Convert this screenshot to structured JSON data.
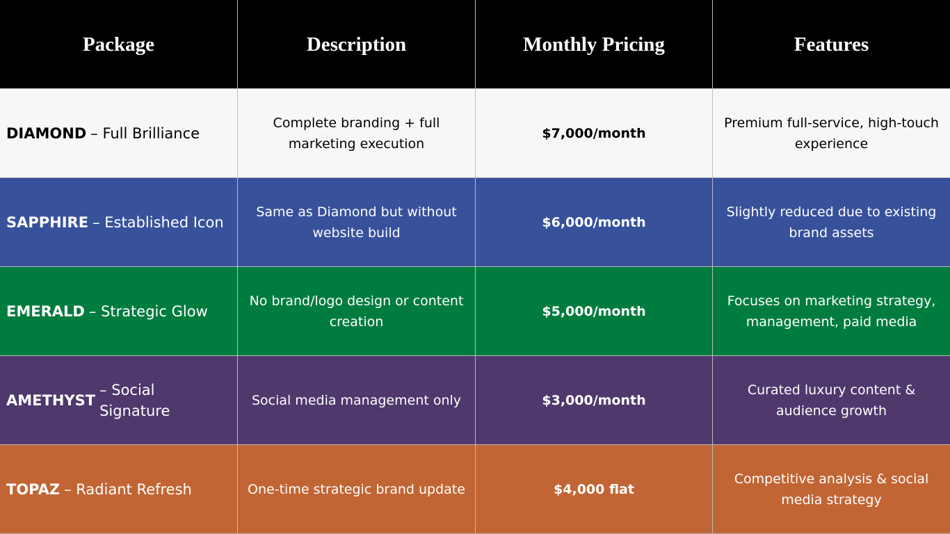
{
  "table": {
    "header": [
      "Package",
      "Description",
      "Monthly Pricing",
      "Features"
    ],
    "rows": [
      {
        "name": "DIAMOND",
        "tagline": "– Full Brilliance",
        "cells": [
          "Complete branding + full marketing execution",
          "$7,000/month",
          "Premium full-service, high-touch experience"
        ],
        "color": "#f8f7f5",
        "text_color": "#000000"
      },
      {
        "name": "SAPPHIRE",
        "tagline": "– Established Icon",
        "cells": [
          "Same as Diamond but without website build",
          "$6,000/month",
          "Slightly reduced due to existing brand assets"
        ],
        "color": "#37519b",
        "text_color": "#ffffff"
      },
      {
        "name": "EMERALD",
        "tagline": "– Strategic Glow",
        "cells": [
          "No brand/logo design or content creation",
          "$5,000/month",
          "Focuses on marketing strategy, management, paid media"
        ],
        "color": "#017c3f",
        "text_color": "#ffffff"
      },
      {
        "name": "AMETHYST",
        "tagline": "– Social Signature",
        "cells": [
          "Social media management only",
          "$3,000/month",
          "Curated luxury content & audience growth"
        ],
        "color": "#4e386c",
        "text_color": "#ffffff"
      },
      {
        "name": "TOPAZ",
        "tagline": "– Radiant Refresh",
        "cells": [
          "One-time strategic brand update",
          "$4,000 flat",
          "Competitive analysis & social media strategy"
        ],
        "color": "#c16534",
        "text_color": "#ffffff"
      }
    ]
  }
}
